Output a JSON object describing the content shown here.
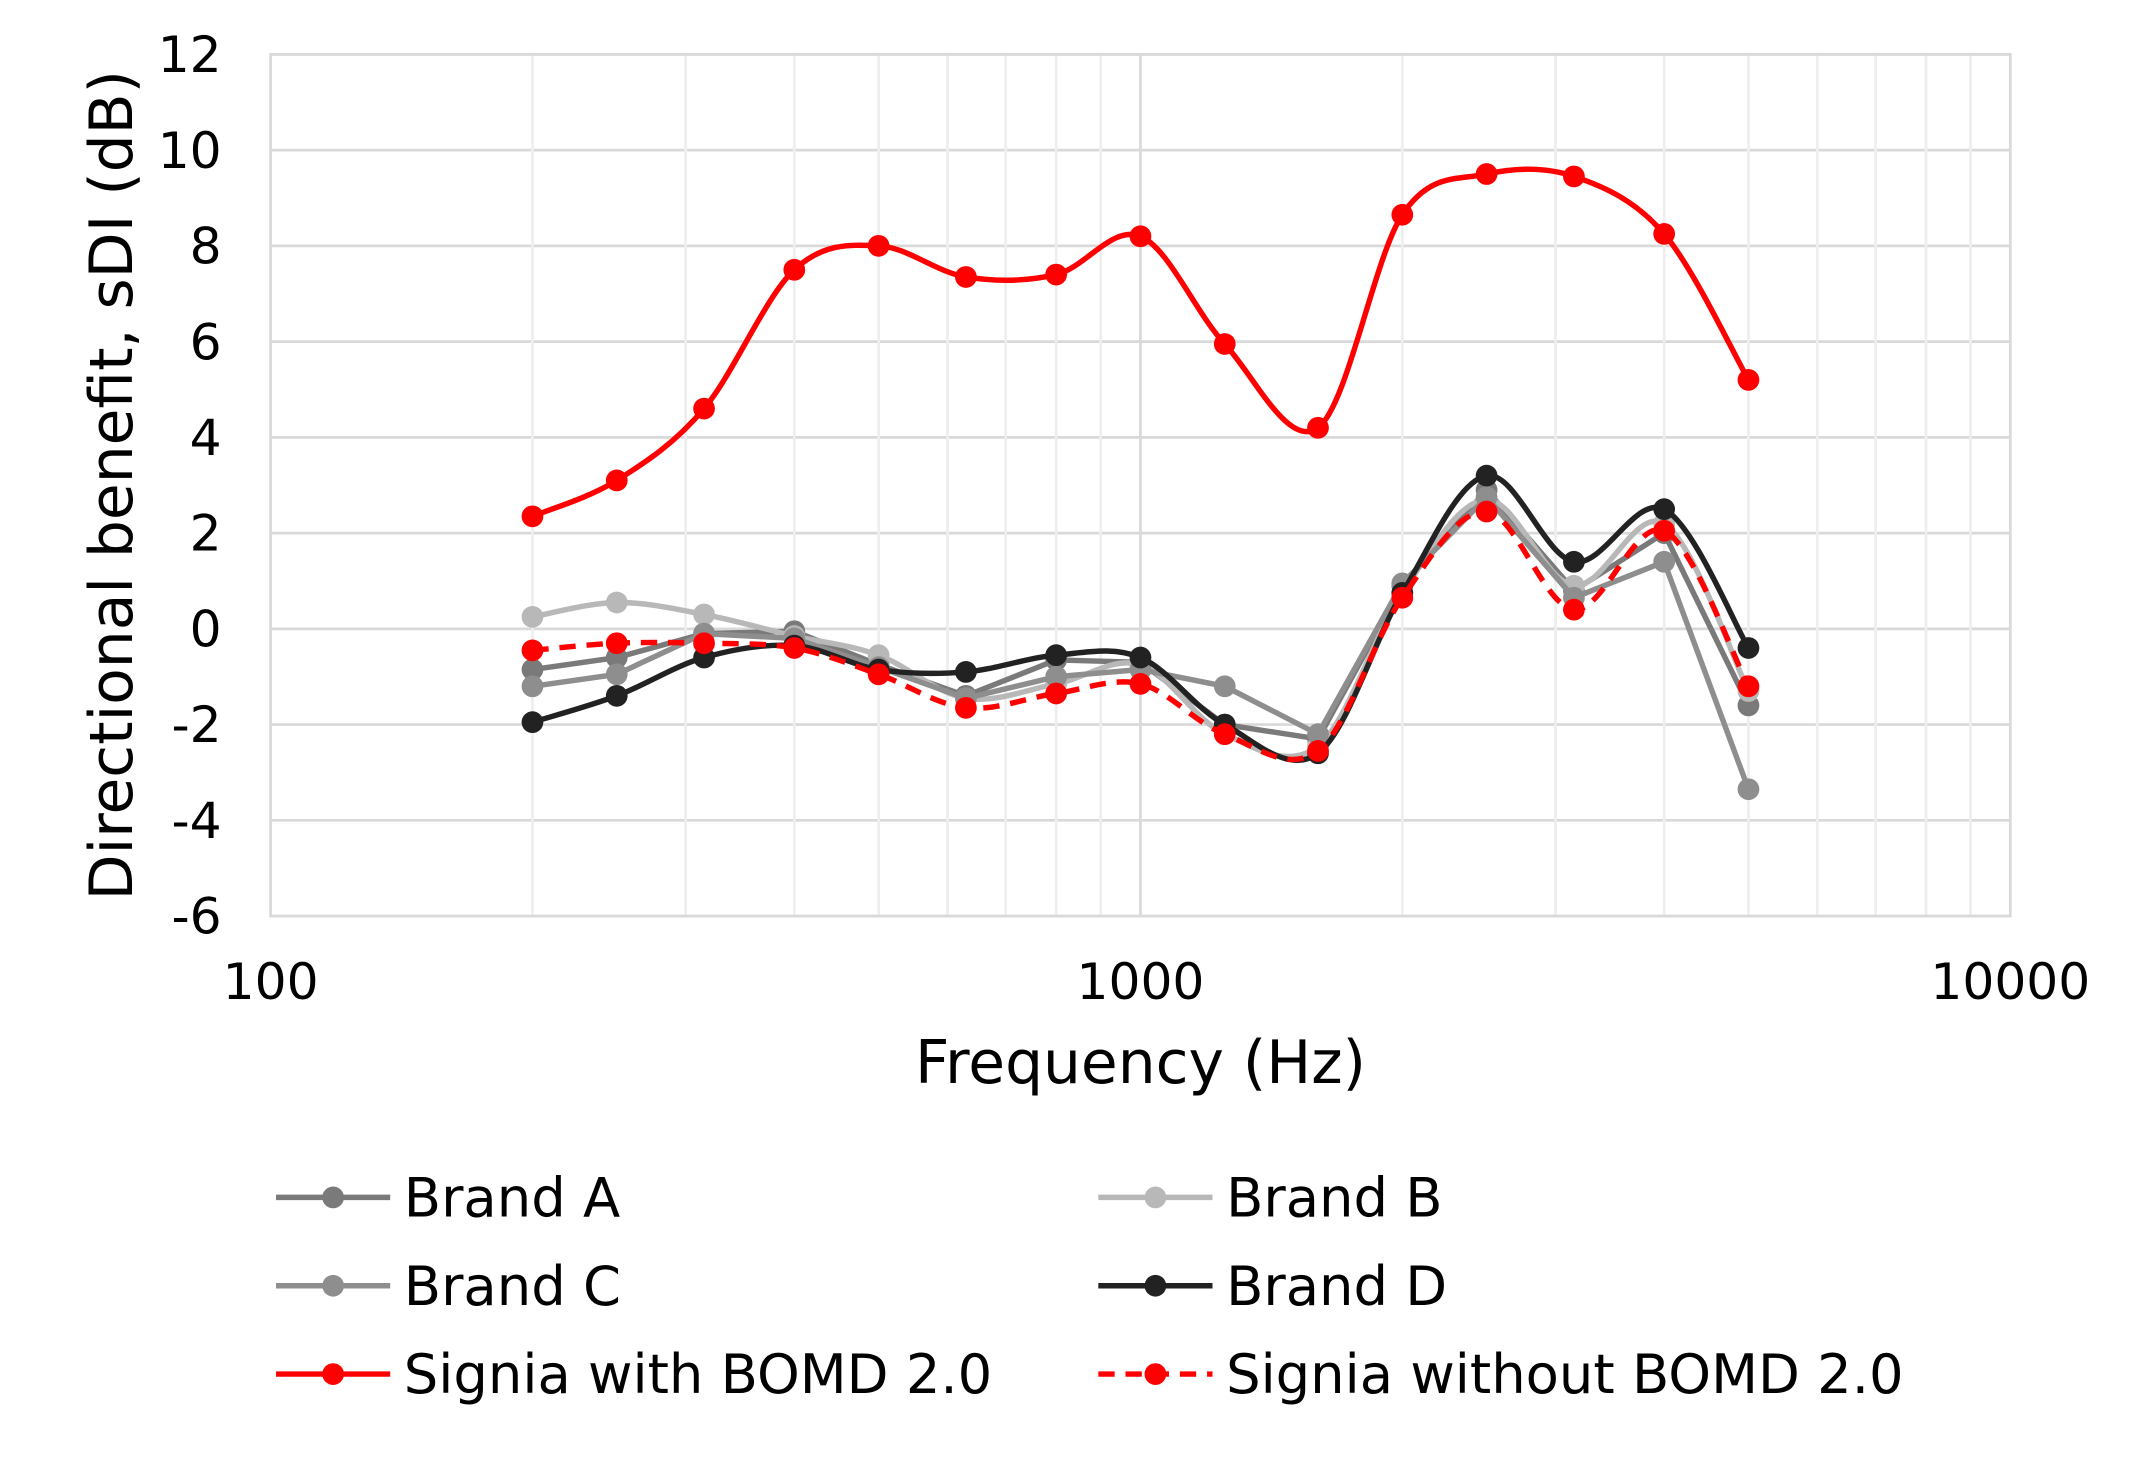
{
  "chart_data": {
    "type": "line",
    "xlabel": "Frequency (Hz)",
    "ylabel": "Directional benefit, sDI (dB)",
    "xscale": "log",
    "xlim": [
      100,
      10000
    ],
    "ylim": [
      -6,
      12
    ],
    "xticks": [
      "100",
      "1000",
      "10000"
    ],
    "yticks": [
      "-6",
      "-4",
      "-2",
      "0",
      "2",
      "4",
      "6",
      "8",
      "10",
      "12"
    ],
    "grid": true,
    "legend_position": "bottom",
    "x": [
      200,
      250,
      315,
      400,
      500,
      630,
      800,
      1000,
      1250,
      1600,
      2000,
      2500,
      3150,
      4000,
      5000
    ],
    "series": [
      {
        "name": "Brand A",
        "color": "#7a7a7a",
        "style": "solid",
        "smooth": false,
        "values": [
          -0.85,
          -0.6,
          -0.1,
          -0.05,
          -0.75,
          -1.4,
          -0.65,
          -0.7,
          -2.0,
          -2.3,
          0.9,
          2.9,
          0.8,
          2.0,
          -1.6
        ]
      },
      {
        "name": "Brand B",
        "color": "#b8b8b8",
        "style": "solid",
        "smooth": true,
        "values": [
          0.25,
          0.55,
          0.3,
          -0.15,
          -0.55,
          -1.45,
          -1.15,
          -0.75,
          -2.2,
          -2.45,
          0.75,
          2.7,
          0.9,
          2.2,
          -1.3
        ]
      },
      {
        "name": "Brand C",
        "color": "#8e8e8e",
        "style": "solid",
        "smooth": false,
        "values": [
          -1.2,
          -0.95,
          -0.1,
          -0.2,
          -0.8,
          -1.45,
          -1.0,
          -0.85,
          -1.2,
          -2.2,
          0.95,
          2.75,
          0.65,
          1.4,
          -3.35
        ]
      },
      {
        "name": "Brand D",
        "color": "#222222",
        "style": "solid",
        "smooth": true,
        "values": [
          -1.95,
          -1.4,
          -0.6,
          -0.35,
          -0.85,
          -0.9,
          -0.55,
          -0.6,
          -2.0,
          -2.6,
          0.75,
          3.2,
          1.4,
          2.5,
          -0.4
        ]
      },
      {
        "name": "Signia with BOMD 2.0",
        "color": "#ff0000",
        "style": "solid",
        "smooth": true,
        "values": [
          2.35,
          3.1,
          4.6,
          7.5,
          8.0,
          7.35,
          7.4,
          8.2,
          5.95,
          4.2,
          8.65,
          9.5,
          9.45,
          8.25,
          5.2
        ]
      },
      {
        "name": "Signia without BOMD 2.0",
        "color": "#ff0000",
        "style": "dashed",
        "smooth": true,
        "values": [
          -0.45,
          -0.3,
          -0.3,
          -0.4,
          -0.95,
          -1.65,
          -1.35,
          -1.15,
          -2.2,
          -2.55,
          0.65,
          2.45,
          0.4,
          2.05,
          -1.2
        ]
      }
    ]
  }
}
